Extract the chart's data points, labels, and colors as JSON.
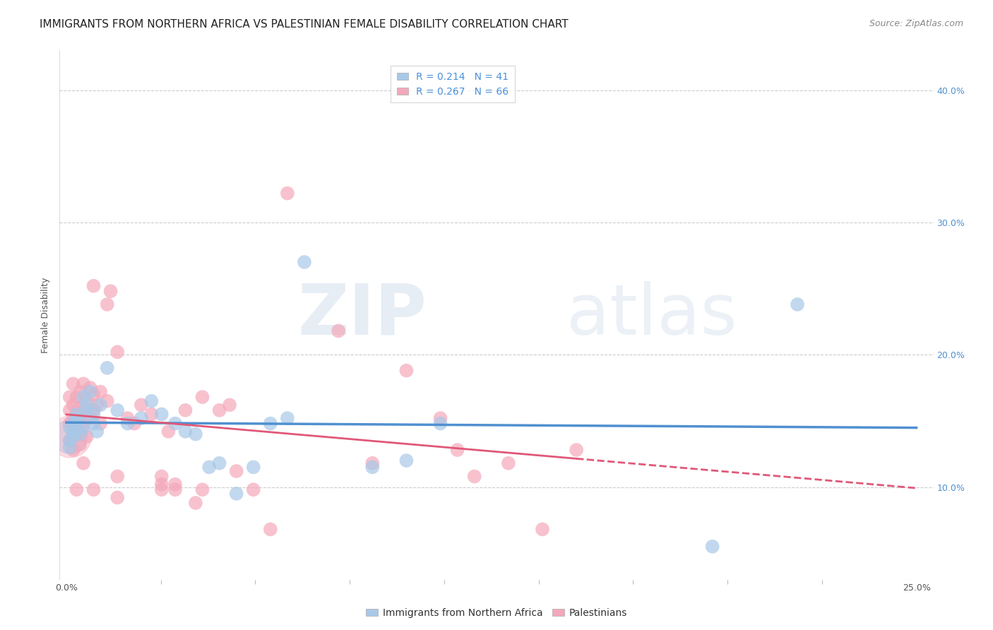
{
  "title": "IMMIGRANTS FROM NORTHERN AFRICA VS PALESTINIAN FEMALE DISABILITY CORRELATION CHART",
  "source": "Source: ZipAtlas.com",
  "ylabel": "Female Disability",
  "watermark": "ZIPatlas",
  "xlim": [
    -0.002,
    0.255
  ],
  "ylim": [
    0.03,
    0.43
  ],
  "yticks": [
    0.1,
    0.2,
    0.3,
    0.4
  ],
  "ytick_labels": [
    "10.0%",
    "20.0%",
    "30.0%",
    "40.0%"
  ],
  "xtick_vals": [
    0.0,
    0.05,
    0.1,
    0.15,
    0.2,
    0.25
  ],
  "xtick_labels": [
    "0.0%",
    "",
    "",
    "",
    "",
    "25.0%"
  ],
  "blue_R": "0.214",
  "blue_N": "41",
  "pink_R": "0.267",
  "pink_N": "66",
  "blue_color": "#a8c8e8",
  "pink_color": "#f4a8ba",
  "blue_line_color": "#5090d0",
  "pink_line_color": "#e05878",
  "blue_scatter": [
    [
      0.001,
      0.135
    ],
    [
      0.001,
      0.13
    ],
    [
      0.001,
      0.145
    ],
    [
      0.002,
      0.138
    ],
    [
      0.002,
      0.148
    ],
    [
      0.002,
      0.142
    ],
    [
      0.003,
      0.15
    ],
    [
      0.003,
      0.143
    ],
    [
      0.003,
      0.155
    ],
    [
      0.004,
      0.14
    ],
    [
      0.004,
      0.152
    ],
    [
      0.005,
      0.168
    ],
    [
      0.005,
      0.145
    ],
    [
      0.006,
      0.158
    ],
    [
      0.006,
      0.162
    ],
    [
      0.007,
      0.172
    ],
    [
      0.008,
      0.148
    ],
    [
      0.008,
      0.155
    ],
    [
      0.009,
      0.142
    ],
    [
      0.01,
      0.162
    ],
    [
      0.012,
      0.19
    ],
    [
      0.015,
      0.158
    ],
    [
      0.018,
      0.148
    ],
    [
      0.022,
      0.152
    ],
    [
      0.025,
      0.165
    ],
    [
      0.028,
      0.155
    ],
    [
      0.032,
      0.148
    ],
    [
      0.035,
      0.142
    ],
    [
      0.038,
      0.14
    ],
    [
      0.042,
      0.115
    ],
    [
      0.045,
      0.118
    ],
    [
      0.05,
      0.095
    ],
    [
      0.055,
      0.115
    ],
    [
      0.06,
      0.148
    ],
    [
      0.065,
      0.152
    ],
    [
      0.07,
      0.27
    ],
    [
      0.09,
      0.115
    ],
    [
      0.1,
      0.12
    ],
    [
      0.11,
      0.148
    ],
    [
      0.19,
      0.055
    ],
    [
      0.215,
      0.238
    ]
  ],
  "pink_scatter": [
    [
      0.001,
      0.135
    ],
    [
      0.001,
      0.148
    ],
    [
      0.001,
      0.158
    ],
    [
      0.001,
      0.168
    ],
    [
      0.002,
      0.128
    ],
    [
      0.002,
      0.15
    ],
    [
      0.002,
      0.162
    ],
    [
      0.002,
      0.178
    ],
    [
      0.003,
      0.098
    ],
    [
      0.003,
      0.14
    ],
    [
      0.003,
      0.155
    ],
    [
      0.003,
      0.168
    ],
    [
      0.004,
      0.132
    ],
    [
      0.004,
      0.152
    ],
    [
      0.004,
      0.16
    ],
    [
      0.004,
      0.172
    ],
    [
      0.005,
      0.118
    ],
    [
      0.005,
      0.148
    ],
    [
      0.005,
      0.158
    ],
    [
      0.005,
      0.178
    ],
    [
      0.006,
      0.138
    ],
    [
      0.006,
      0.165
    ],
    [
      0.007,
      0.152
    ],
    [
      0.007,
      0.175
    ],
    [
      0.008,
      0.098
    ],
    [
      0.008,
      0.158
    ],
    [
      0.008,
      0.17
    ],
    [
      0.008,
      0.252
    ],
    [
      0.009,
      0.162
    ],
    [
      0.01,
      0.148
    ],
    [
      0.01,
      0.172
    ],
    [
      0.012,
      0.165
    ],
    [
      0.012,
      0.238
    ],
    [
      0.013,
      0.248
    ],
    [
      0.015,
      0.092
    ],
    [
      0.015,
      0.108
    ],
    [
      0.015,
      0.202
    ],
    [
      0.018,
      0.152
    ],
    [
      0.02,
      0.148
    ],
    [
      0.022,
      0.162
    ],
    [
      0.025,
      0.155
    ],
    [
      0.028,
      0.098
    ],
    [
      0.028,
      0.102
    ],
    [
      0.028,
      0.108
    ],
    [
      0.03,
      0.142
    ],
    [
      0.032,
      0.098
    ],
    [
      0.032,
      0.102
    ],
    [
      0.035,
      0.158
    ],
    [
      0.038,
      0.088
    ],
    [
      0.04,
      0.098
    ],
    [
      0.04,
      0.168
    ],
    [
      0.045,
      0.158
    ],
    [
      0.048,
      0.162
    ],
    [
      0.05,
      0.112
    ],
    [
      0.055,
      0.098
    ],
    [
      0.06,
      0.068
    ],
    [
      0.065,
      0.322
    ],
    [
      0.08,
      0.218
    ],
    [
      0.09,
      0.118
    ],
    [
      0.1,
      0.188
    ],
    [
      0.11,
      0.152
    ],
    [
      0.115,
      0.128
    ],
    [
      0.12,
      0.108
    ],
    [
      0.13,
      0.118
    ],
    [
      0.14,
      0.068
    ],
    [
      0.15,
      0.128
    ]
  ],
  "grid_color": "#cccccc",
  "background_color": "#ffffff",
  "title_fontsize": 11,
  "axis_label_fontsize": 9,
  "tick_fontsize": 9,
  "legend_fontsize": 10,
  "source_fontsize": 9
}
